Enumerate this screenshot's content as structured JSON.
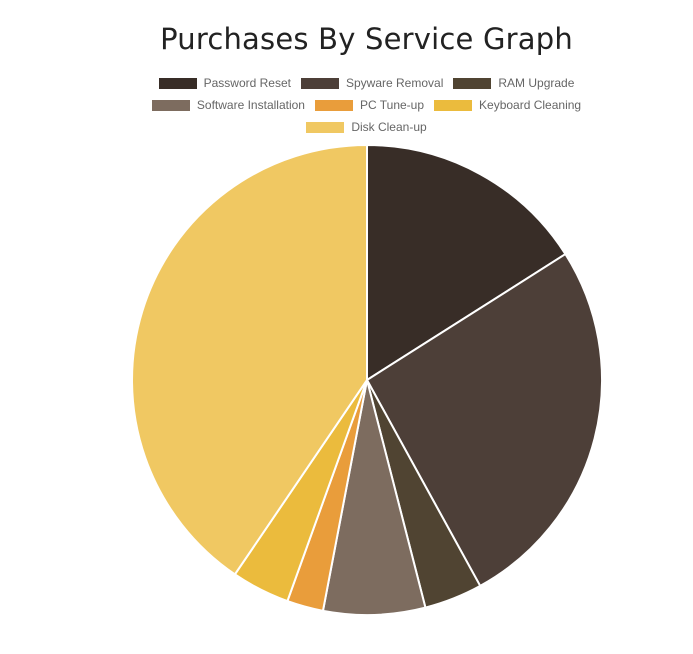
{
  "chart_data": {
    "type": "pie",
    "title": "Purchases By Service Graph",
    "legend_position": "top",
    "categories": [
      "Password Reset",
      "Spyware Removal",
      "RAM Upgrade",
      "Software Installation",
      "PC Tune-up",
      "Keyboard Cleaning",
      "Disk Clean-up"
    ],
    "values": [
      16,
      26,
      4,
      7,
      2.5,
      4,
      40.5
    ],
    "colors": [
      "#382d27",
      "#4d3f38",
      "#504432",
      "#7d6c5f",
      "#e99d3b",
      "#ebbb3d",
      "#f0c862"
    ]
  }
}
